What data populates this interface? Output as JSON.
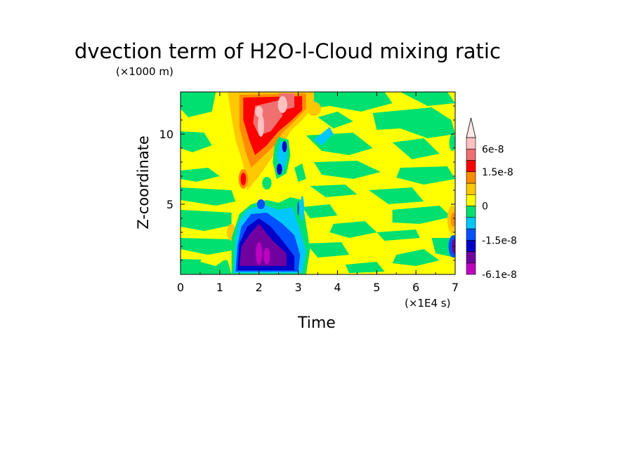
{
  "chart_data": {
    "type": "heatmap",
    "title": "Advection term of H2O-l-Cloud mixing ratio",
    "title_visible": "dvection term of H2O-l-Cloud mixing ratic",
    "xlabel": "Time",
    "ylabel": "Z-coordinate",
    "x_unit": "(×1E4 s)",
    "y_unit": "(×1000 m)",
    "xlim": [
      0,
      7
    ],
    "ylim": [
      0,
      13
    ],
    "x_ticks": [
      "0",
      "1",
      "2",
      "3",
      "4",
      "5",
      "6",
      "7"
    ],
    "y_ticks": [
      "5",
      "10"
    ],
    "colorbar": {
      "labels": [
        "6e-8",
        "1.5e-8",
        "0",
        "-1.5e-8",
        "-6.1e-8"
      ],
      "levels": [
        {
          "color": "#c000c0",
          "range": "-6.1e-8 to -4.5e-8"
        },
        {
          "color": "#7000a0",
          "range": "-4.5e-8 to -3e-8"
        },
        {
          "color": "#0000c8",
          "range": "-3e-8 to -1.5e-8"
        },
        {
          "color": "#0050ff",
          "range": "-1.5e-8 to -1e-8"
        },
        {
          "color": "#00c8ff",
          "range": "-1e-8 to -5e-9"
        },
        {
          "color": "#00e070",
          "range": "-5e-9 to 0"
        },
        {
          "color": "#ffff00",
          "range": "0 to 5e-9"
        },
        {
          "color": "#ffc800",
          "range": "5e-9 to 1e-8"
        },
        {
          "color": "#ff8c00",
          "range": "1e-8 to 1.5e-8"
        },
        {
          "color": "#ff0000",
          "range": "1.5e-8 to 3e-8"
        },
        {
          "color": "#f07070",
          "range": "3e-8 to 4.5e-8"
        },
        {
          "color": "#ffc0c0",
          "range": "4.5e-8 to 6e-8"
        }
      ],
      "extend_max": true
    },
    "regions": [
      {
        "feature": "strong negative (purple/blue) core",
        "x_range": [
          1.4,
          3.0
        ],
        "z_range": [
          0.2,
          5.0
        ]
      },
      {
        "feature": "strong positive (red/pink) core",
        "x_range": [
          1.6,
          3.2
        ],
        "z_range": [
          6.5,
          13.0
        ]
      },
      {
        "feature": "mostly yellow (weak positive) background with green patches",
        "x_range": [
          0,
          7
        ],
        "z_range": [
          0,
          13
        ]
      }
    ]
  }
}
